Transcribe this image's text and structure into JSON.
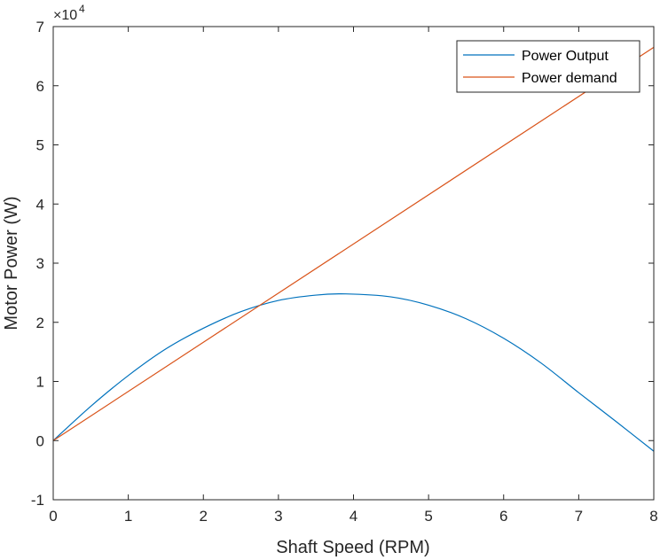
{
  "chart_data": {
    "type": "line",
    "xlabel": "Shaft Speed (RPM)",
    "ylabel": "Motor Power (W)",
    "xlim": [
      0,
      8
    ],
    "ylim": [
      -1,
      7
    ],
    "y_scale_multiplier": "×10",
    "y_scale_exponent": "4",
    "x_ticks": [
      "0",
      "1",
      "2",
      "3",
      "4",
      "5",
      "6",
      "7",
      "8"
    ],
    "y_ticks": [
      "-1",
      "0",
      "1",
      "2",
      "3",
      "4",
      "5",
      "6",
      "7"
    ],
    "grid": false,
    "legend_position": "top-right",
    "series": [
      {
        "name": "Power Output",
        "color": "#0072BD",
        "x": [
          0,
          0.5,
          1,
          1.5,
          2,
          2.5,
          3,
          3.5,
          3.9,
          4.5,
          5,
          5.5,
          6,
          6.5,
          7,
          7.5,
          8
        ],
        "y": [
          0,
          0.58,
          1.1,
          1.55,
          1.9,
          2.18,
          2.37,
          2.46,
          2.48,
          2.43,
          2.29,
          2.06,
          1.73,
          1.31,
          0.81,
          0.32,
          -0.18
        ]
      },
      {
        "name": "Power demand",
        "color": "#D95319",
        "x": [
          0,
          8
        ],
        "y": [
          0,
          6.65
        ]
      }
    ]
  }
}
